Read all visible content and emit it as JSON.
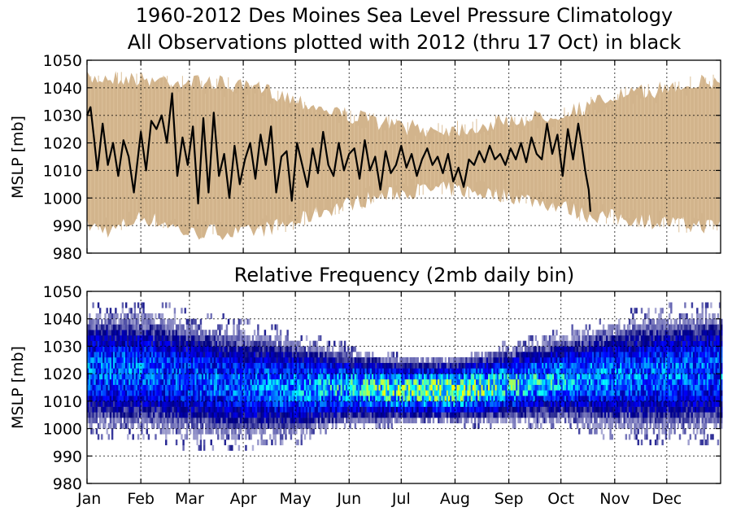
{
  "chart_data": [
    {
      "type": "line",
      "title": "1960-2012 Des Moines Sea Level Pressure Climatology",
      "subtitle": "All Observations plotted with 2012 (thru 17 Oct) in black",
      "ylabel": "MSLP [mb]",
      "ylim": [
        980,
        1050
      ],
      "yticks": [
        980,
        990,
        1000,
        1010,
        1020,
        1030,
        1040,
        1050
      ],
      "grid": true,
      "colors": {
        "envelope": "#d2b48c",
        "observations_2012": "#000000"
      },
      "envelope_all_years": {
        "day": [
          1,
          15,
          32,
          46,
          60,
          74,
          91,
          105,
          121,
          135,
          152,
          166,
          182,
          196,
          213,
          227,
          244,
          258,
          274,
          288,
          305,
          319,
          335,
          349,
          366
        ],
        "max": [
          1046,
          1047,
          1046,
          1046,
          1045,
          1045,
          1043,
          1042,
          1039,
          1036,
          1033,
          1031,
          1029,
          1028,
          1028,
          1029,
          1031,
          1032,
          1034,
          1036,
          1040,
          1041,
          1043,
          1045,
          1045
        ],
        "min": [
          987,
          985,
          990,
          988,
          984,
          985,
          984,
          986,
          988,
          992,
          995,
          997,
          999,
          1000,
          1000,
          999,
          998,
          996,
          994,
          991,
          990,
          989,
          988,
          987,
          987
        ]
      },
      "observations_2012": {
        "day": [
          1,
          3,
          5,
          7,
          10,
          13,
          16,
          19,
          22,
          25,
          28,
          32,
          35,
          38,
          41,
          44,
          47,
          50,
          53,
          56,
          59,
          62,
          65,
          68,
          71,
          74,
          77,
          80,
          83,
          86,
          89,
          92,
          95,
          98,
          101,
          104,
          107,
          110,
          113,
          116,
          119,
          122,
          125,
          128,
          131,
          134,
          137,
          140,
          143,
          146,
          149,
          152,
          155,
          158,
          161,
          164,
          167,
          170,
          173,
          176,
          179,
          182,
          185,
          188,
          191,
          194,
          197,
          200,
          203,
          206,
          209,
          212,
          215,
          218,
          221,
          224,
          227,
          230,
          233,
          236,
          239,
          242,
          245,
          248,
          251,
          254,
          257,
          260,
          263,
          266,
          269,
          272,
          275,
          278,
          281,
          284,
          286,
          288,
          290,
          291
        ],
        "mslp": [
          1030,
          1033,
          1022,
          1010,
          1027,
          1012,
          1020,
          1008,
          1021,
          1015,
          1002,
          1024,
          1010,
          1028,
          1025,
          1030,
          1020,
          1038,
          1008,
          1022,
          1012,
          1026,
          998,
          1029,
          1002,
          1031,
          1008,
          1016,
          1000,
          1019,
          1005,
          1014,
          1020,
          1007,
          1023,
          1012,
          1026,
          1002,
          1015,
          1017,
          999,
          1020,
          1012,
          1004,
          1018,
          1009,
          1024,
          1012,
          1008,
          1020,
          1010,
          1016,
          1018,
          1007,
          1021,
          1010,
          1015,
          1003,
          1017,
          1009,
          1012,
          1019,
          1011,
          1016,
          1008,
          1014,
          1018,
          1012,
          1015,
          1009,
          1016,
          1006,
          1011,
          1004,
          1014,
          1012,
          1017,
          1013,
          1019,
          1014,
          1016,
          1012,
          1018,
          1014,
          1020,
          1013,
          1022,
          1016,
          1014,
          1027,
          1016,
          1023,
          1008,
          1025,
          1014,
          1027,
          1019,
          1010,
          1003,
          995
        ]
      }
    },
    {
      "type": "heatmap",
      "title": "Relative Frequency (2mb daily bin)",
      "ylabel": "MSLP [mb]",
      "ylim": [
        980,
        1050
      ],
      "yticks": [
        980,
        990,
        1000,
        1010,
        1020,
        1030,
        1040,
        1050
      ],
      "xticks": [
        "Jan",
        "Feb",
        "Mar",
        "Apr",
        "May",
        "Jun",
        "Jul",
        "Aug",
        "Sep",
        "Oct",
        "Nov",
        "Dec"
      ],
      "xtick_days": [
        1,
        32,
        60,
        91,
        121,
        152,
        182,
        213,
        244,
        274,
        305,
        335
      ],
      "xlim_days": [
        1,
        366
      ],
      "bin_mb": 2,
      "grid": true,
      "colormap": [
        "#ffffff",
        "#00007f",
        "#0000ff",
        "#007fff",
        "#00ffff",
        "#7fff7f",
        "#ffff00"
      ],
      "distribution_by_day": {
        "day": [
          1,
          32,
          60,
          91,
          121,
          152,
          182,
          213,
          244,
          274,
          305,
          335,
          366
        ],
        "mean_mb": [
          1021,
          1021,
          1018,
          1016,
          1015,
          1015,
          1014,
          1014,
          1016,
          1018,
          1019,
          1020,
          1021
        ],
        "spread_mb": [
          10,
          10,
          10,
          9,
          8,
          6,
          5,
          5,
          6,
          7,
          9,
          10,
          10
        ],
        "peak_relative_frequency": [
          0.45,
          0.45,
          0.42,
          0.45,
          0.52,
          0.62,
          0.78,
          0.82,
          0.66,
          0.56,
          0.48,
          0.45,
          0.45
        ]
      }
    }
  ]
}
